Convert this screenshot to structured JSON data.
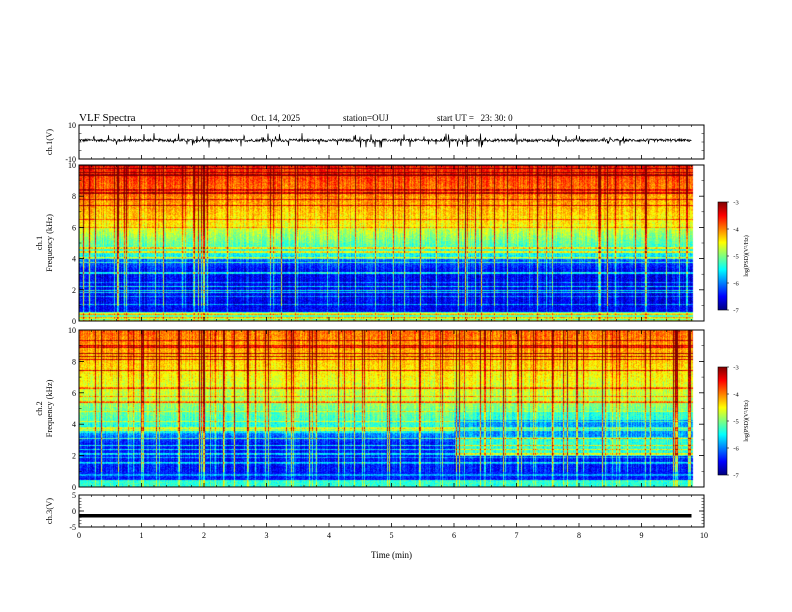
{
  "header": {
    "title": "VLF Spectra",
    "date": "Oct. 14, 2025",
    "station": "station=OUJ",
    "start": "start UT =   23: 30: 0"
  },
  "chart_data": [
    {
      "type": "line",
      "panel": "ch1-waveform",
      "ylabel": "ch.1(V)",
      "ylim": [
        -10,
        10
      ],
      "yticks": [
        "10",
        "-10"
      ],
      "xlim": [
        0,
        10
      ],
      "series_note": "noisy waveform centred near +1 V with spikes up to about ±4 V, data from 0 to 9.8 min",
      "baseline": 1,
      "data_end": 9.8
    },
    {
      "type": "heatmap",
      "panel": "ch1-spectrogram",
      "ylabel": "ch.1\nFrequency (kHz)",
      "ylim": [
        0,
        10
      ],
      "yticks": [
        "0",
        "2",
        "4",
        "6",
        "8",
        "10"
      ],
      "xlim": [
        0,
        10
      ],
      "data_end": 9.8,
      "colorbar": {
        "label": "log(PSD)(V²/Hz)",
        "range": [
          -7,
          -3
        ],
        "ticks": [
          "-3",
          "-4",
          "-5",
          "-6",
          "-7"
        ]
      },
      "profile_note": "dark blue below ~4 kHz, green/cyan 4-6 kHz, yellow-red above 6 kHz, frequent vertical sferic streaks"
    },
    {
      "type": "heatmap",
      "panel": "ch2-spectrogram",
      "ylabel": "ch.2\nFrequency (kHz)",
      "ylim": [
        0,
        10
      ],
      "yticks": [
        "0",
        "2",
        "4",
        "6",
        "8",
        "10"
      ],
      "xlim": [
        0,
        10
      ],
      "data_end": 9.8,
      "colorbar": {
        "label": "log(PSD)(V²/Hz)",
        "range": [
          -7,
          -3
        ],
        "ticks": [
          "-3",
          "-4",
          "-5",
          "-6",
          "-7"
        ]
      },
      "profile_note": "blue below ~3.5 kHz, green/yellow above; after ~6 min a green band appears at ~2-3 kHz and ~4.5 kHz"
    },
    {
      "type": "line",
      "panel": "ch3-waveform",
      "ylabel": "ch.3(V)",
      "ylim": [
        -5,
        5
      ],
      "yticks": [
        "5",
        "0",
        "-5"
      ],
      "xlim": [
        0,
        10
      ],
      "xlabel": "Time (min)",
      "xticks": [
        "0",
        "1",
        "2",
        "3",
        "4",
        "5",
        "6",
        "7",
        "8",
        "9",
        "10"
      ],
      "constant_value": -1.5,
      "data_end": 9.8
    }
  ],
  "colors": {
    "jet": [
      "#00007f",
      "#0000ff",
      "#007fff",
      "#00ffff",
      "#7fff7f",
      "#ffff00",
      "#ff7f00",
      "#ff0000",
      "#7f0000"
    ]
  }
}
